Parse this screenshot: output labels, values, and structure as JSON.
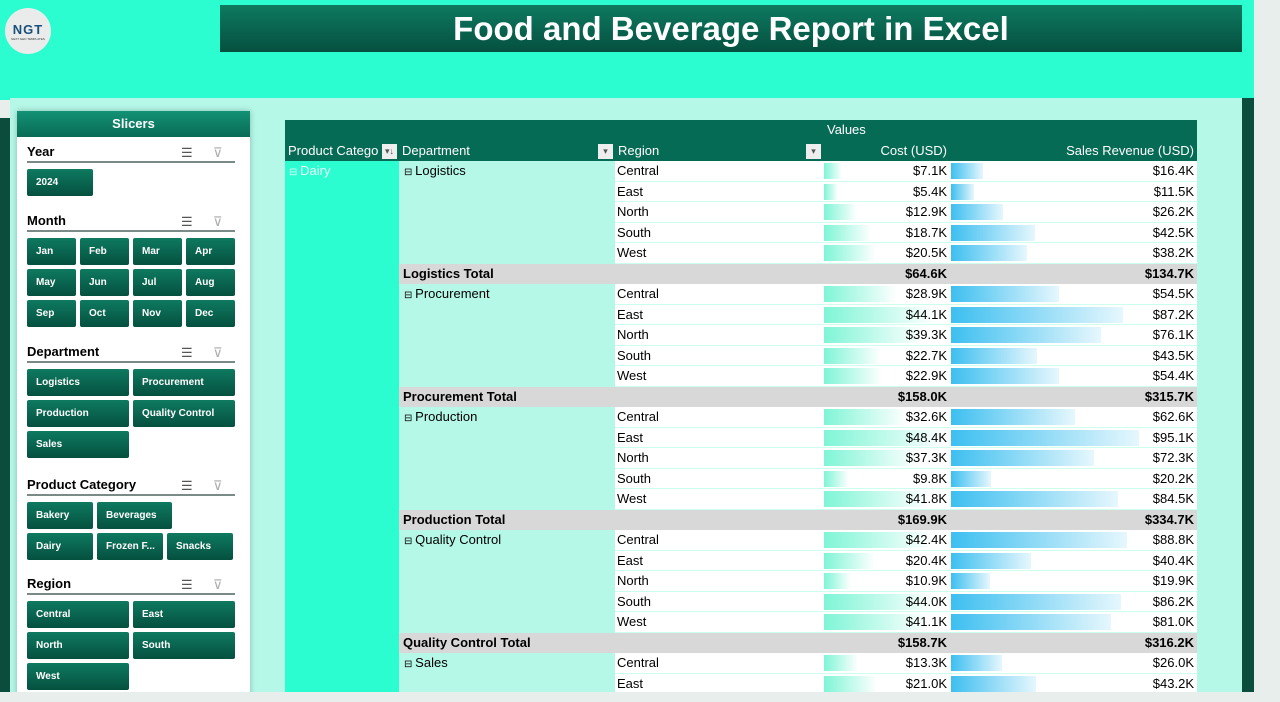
{
  "title": "Food and Beverage Report in Excel",
  "logo": {
    "text": "NGT",
    "sub": "NEXT GEN TEMPLATES"
  },
  "slicers": {
    "title": "Slicers",
    "sections": [
      {
        "name": "Year",
        "items": [
          "2024"
        ]
      },
      {
        "name": "Month",
        "items": [
          "Jan",
          "Feb",
          "Mar",
          "Apr",
          "May",
          "Jun",
          "Jul",
          "Aug",
          "Sep",
          "Oct",
          "Nov",
          "Dec"
        ]
      },
      {
        "name": "Department",
        "items": [
          "Logistics",
          "Procurement",
          "Production",
          "Quality Control",
          "Sales"
        ]
      },
      {
        "name": "Product Category",
        "items": [
          "Bakery",
          "Beverages",
          "Dairy",
          "Frozen F...",
          "Snacks"
        ]
      },
      {
        "name": "Region",
        "items": [
          "Central",
          "East",
          "North",
          "South",
          "West"
        ]
      }
    ]
  },
  "pivot": {
    "values_label": "Values",
    "headers": [
      "Product Catego",
      "Department",
      "Region",
      "Cost (USD)",
      "Sales Revenue (USD)"
    ],
    "category": "Dairy",
    "groups": [
      {
        "dept": "Logistics",
        "rows": [
          [
            "Central",
            "$7.1K",
            "$16.4K"
          ],
          [
            "East",
            "$5.4K",
            "$11.5K"
          ],
          [
            "North",
            "$12.9K",
            "$26.2K"
          ],
          [
            "South",
            "$18.7K",
            "$42.5K"
          ],
          [
            "West",
            "$20.5K",
            "$38.2K"
          ]
        ],
        "total": [
          "Logistics Total",
          "$64.6K",
          "$134.7K"
        ]
      },
      {
        "dept": "Procurement",
        "rows": [
          [
            "Central",
            "$28.9K",
            "$54.5K"
          ],
          [
            "East",
            "$44.1K",
            "$87.2K"
          ],
          [
            "North",
            "$39.3K",
            "$76.1K"
          ],
          [
            "South",
            "$22.7K",
            "$43.5K"
          ],
          [
            "West",
            "$22.9K",
            "$54.4K"
          ]
        ],
        "total": [
          "Procurement Total",
          "$158.0K",
          "$315.7K"
        ]
      },
      {
        "dept": "Production",
        "rows": [
          [
            "Central",
            "$32.6K",
            "$62.6K"
          ],
          [
            "East",
            "$48.4K",
            "$95.1K"
          ],
          [
            "North",
            "$37.3K",
            "$72.3K"
          ],
          [
            "South",
            "$9.8K",
            "$20.2K"
          ],
          [
            "West",
            "$41.8K",
            "$84.5K"
          ]
        ],
        "total": [
          "Production Total",
          "$169.9K",
          "$334.7K"
        ]
      },
      {
        "dept": "Quality Control",
        "rows": [
          [
            "Central",
            "$42.4K",
            "$88.8K"
          ],
          [
            "East",
            "$20.4K",
            "$40.4K"
          ],
          [
            "North",
            "$10.9K",
            "$19.9K"
          ],
          [
            "South",
            "$44.0K",
            "$86.2K"
          ],
          [
            "West",
            "$41.1K",
            "$81.0K"
          ]
        ],
        "total": [
          "Quality Control Total",
          "$158.7K",
          "$316.2K"
        ]
      },
      {
        "dept": "Sales",
        "rows": [
          [
            "Central",
            "$13.3K",
            "$26.0K"
          ],
          [
            "East",
            "$21.0K",
            "$43.2K"
          ]
        ]
      }
    ]
  },
  "colors": {
    "accent": "#2cfdd0",
    "dark": "#066b55",
    "panel": "#b6f8e8"
  }
}
